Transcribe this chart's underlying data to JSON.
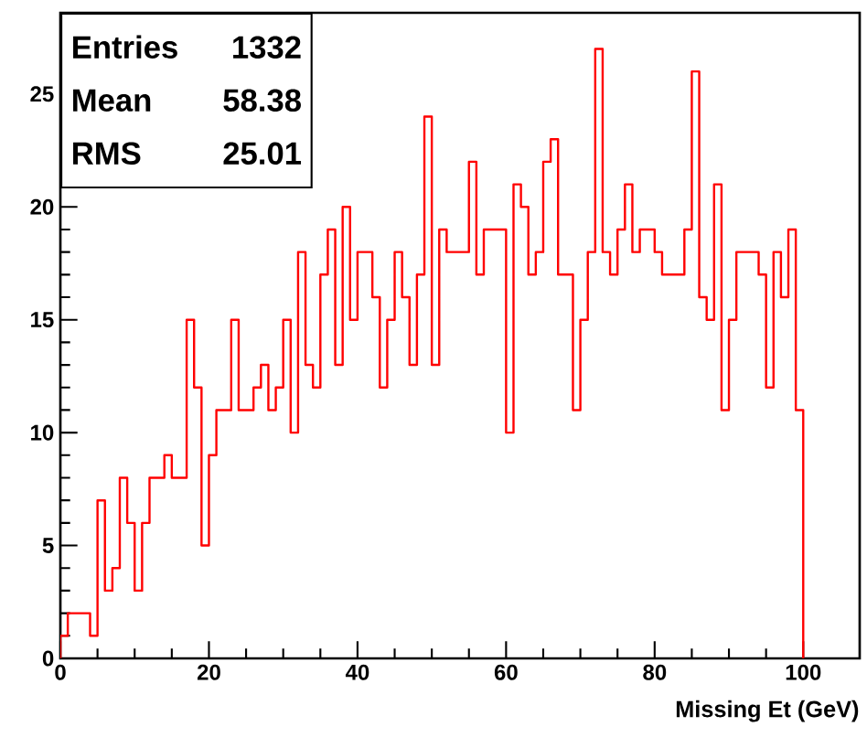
{
  "chart_data": {
    "type": "histogram",
    "xlabel": "Missing Et  (GeV)",
    "annotations": [
      "Entries",
      "1332",
      "Mean",
      "58.38",
      "RMS",
      "25.01"
    ],
    "color": "#ff0000",
    "bins": [
      0,
      1,
      2,
      3,
      4,
      5,
      6,
      7,
      8,
      9,
      10,
      11,
      12,
      13,
      14,
      15,
      16,
      17,
      18,
      19,
      20,
      21,
      22,
      23,
      24,
      25,
      26,
      27,
      28,
      29,
      30,
      31,
      32,
      33,
      34,
      35,
      36,
      37,
      38,
      39,
      40,
      41,
      42,
      43,
      44,
      45,
      46,
      47,
      48,
      49,
      50,
      51,
      52,
      53,
      54,
      55,
      56,
      57,
      58,
      59,
      60,
      61,
      62,
      63,
      64,
      65,
      66,
      67,
      68,
      69,
      70,
      71,
      72,
      73,
      74,
      75,
      76,
      77,
      78,
      79,
      80,
      81,
      82,
      83,
      84,
      85,
      86,
      87,
      88,
      89,
      90,
      91,
      92,
      93,
      94,
      95,
      96,
      97,
      98,
      99,
      100
    ],
    "values": [
      1,
      2,
      2,
      2,
      1,
      7,
      3,
      4,
      8,
      6,
      3,
      6,
      8,
      8,
      9,
      8,
      8,
      15,
      12,
      5,
      9,
      11,
      11,
      15,
      11,
      11,
      12,
      13,
      11,
      12,
      15,
      10,
      18,
      13,
      12,
      17,
      19,
      13,
      20,
      15,
      18,
      18,
      16,
      12,
      15,
      18,
      16,
      13,
      17,
      24,
      13,
      19,
      18,
      18,
      18,
      22,
      17,
      19,
      19,
      19,
      10,
      21,
      20,
      17,
      18,
      22,
      23,
      17,
      17,
      11,
      15,
      18,
      27,
      18,
      17,
      19,
      21,
      18,
      19,
      19,
      18,
      17,
      17,
      17,
      19,
      26,
      16,
      15,
      21,
      11,
      15,
      18,
      18,
      18,
      17,
      12,
      18,
      16,
      19,
      11
    ],
    "xlim": [
      0,
      107.6
    ],
    "ylim": [
      0,
      28.6
    ],
    "xticks": [
      0,
      20,
      40,
      60,
      80,
      100
    ],
    "yticks": [
      0,
      5,
      10,
      15,
      20,
      25
    ]
  }
}
